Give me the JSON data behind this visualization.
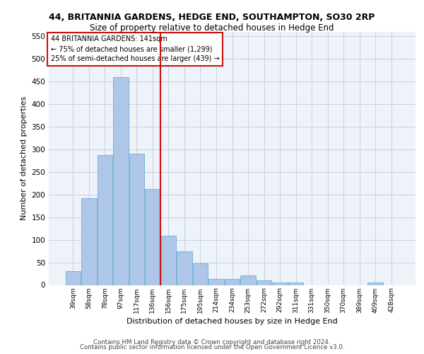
{
  "title_line1": "44, BRITANNIA GARDENS, HEDGE END, SOUTHAMPTON, SO30 2RP",
  "title_line2": "Size of property relative to detached houses in Hedge End",
  "xlabel": "Distribution of detached houses by size in Hedge End",
  "ylabel": "Number of detached properties",
  "footer_line1": "Contains HM Land Registry data © Crown copyright and database right 2024.",
  "footer_line2": "Contains public sector information licensed under the Open Government Licence v3.0.",
  "annotation_line1": "44 BRITANNIA GARDENS: 141sqm",
  "annotation_line2": "← 75% of detached houses are smaller (1,299)",
  "annotation_line3": "25% of semi-detached houses are larger (439) →",
  "categories": [
    "39sqm",
    "58sqm",
    "78sqm",
    "97sqm",
    "117sqm",
    "136sqm",
    "156sqm",
    "175sqm",
    "195sqm",
    "214sqm",
    "234sqm",
    "253sqm",
    "272sqm",
    "292sqm",
    "311sqm",
    "331sqm",
    "350sqm",
    "370sqm",
    "389sqm",
    "409sqm",
    "428sqm"
  ],
  "values": [
    30,
    192,
    287,
    460,
    291,
    213,
    109,
    74,
    47,
    13,
    13,
    21,
    10,
    5,
    5,
    0,
    0,
    0,
    0,
    5,
    0
  ],
  "bar_color": "#aec6e8",
  "bar_edge_color": "#6aaed6",
  "red_line_x": 5.5,
  "ylim": [
    0,
    560
  ],
  "yticks": [
    0,
    50,
    100,
    150,
    200,
    250,
    300,
    350,
    400,
    450,
    500,
    550
  ],
  "bg_color": "#eef2f9",
  "grid_color": "#c8d0e0"
}
